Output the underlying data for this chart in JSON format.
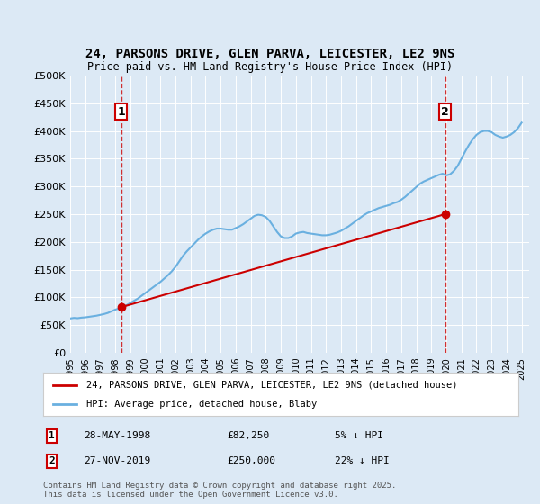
{
  "title": "24, PARSONS DRIVE, GLEN PARVA, LEICESTER, LE2 9NS",
  "subtitle": "Price paid vs. HM Land Registry's House Price Index (HPI)",
  "xlabel": "",
  "ylabel": "",
  "ylim": [
    0,
    500000
  ],
  "yticks": [
    0,
    50000,
    100000,
    150000,
    200000,
    250000,
    300000,
    350000,
    400000,
    450000,
    500000
  ],
  "ytick_labels": [
    "£0",
    "£50K",
    "£100K",
    "£150K",
    "£200K",
    "£250K",
    "£300K",
    "£350K",
    "£400K",
    "£450K",
    "£500K"
  ],
  "background_color": "#dce9f5",
  "plot_bg_color": "#dce9f5",
  "hpi_color": "#6ab0e0",
  "price_color": "#cc0000",
  "marker_color_1": "#cc0000",
  "marker_color_2": "#cc0000",
  "dashed_line_color": "#cc0000",
  "legend_label_price": "24, PARSONS DRIVE, GLEN PARVA, LEICESTER, LE2 9NS (detached house)",
  "legend_label_hpi": "HPI: Average price, detached house, Blaby",
  "transaction_1_date": "28-MAY-1998",
  "transaction_1_price": 82250,
  "transaction_1_pct": "5% ↓ HPI",
  "transaction_2_date": "27-NOV-2019",
  "transaction_2_price": 250000,
  "transaction_2_pct": "22% ↓ HPI",
  "footer": "Contains HM Land Registry data © Crown copyright and database right 2025.\nThis data is licensed under the Open Government Licence v3.0.",
  "xlim_start": 1995.0,
  "xlim_end": 2025.5,
  "xticks": [
    1995,
    1996,
    1997,
    1998,
    1999,
    2000,
    2001,
    2002,
    2003,
    2004,
    2005,
    2006,
    2007,
    2008,
    2009,
    2010,
    2011,
    2012,
    2013,
    2014,
    2015,
    2016,
    2017,
    2018,
    2019,
    2020,
    2021,
    2022,
    2023,
    2024,
    2025
  ],
  "hpi_years": [
    1995.0,
    1995.25,
    1995.5,
    1995.75,
    1996.0,
    1996.25,
    1996.5,
    1996.75,
    1997.0,
    1997.25,
    1997.5,
    1997.75,
    1998.0,
    1998.25,
    1998.5,
    1998.75,
    1999.0,
    1999.25,
    1999.5,
    1999.75,
    2000.0,
    2000.25,
    2000.5,
    2000.75,
    2001.0,
    2001.25,
    2001.5,
    2001.75,
    2002.0,
    2002.25,
    2002.5,
    2002.75,
    2003.0,
    2003.25,
    2003.5,
    2003.75,
    2004.0,
    2004.25,
    2004.5,
    2004.75,
    2005.0,
    2005.25,
    2005.5,
    2005.75,
    2006.0,
    2006.25,
    2006.5,
    2006.75,
    2007.0,
    2007.25,
    2007.5,
    2007.75,
    2008.0,
    2008.25,
    2008.5,
    2008.75,
    2009.0,
    2009.25,
    2009.5,
    2009.75,
    2010.0,
    2010.25,
    2010.5,
    2010.75,
    2011.0,
    2011.25,
    2011.5,
    2011.75,
    2012.0,
    2012.25,
    2012.5,
    2012.75,
    2013.0,
    2013.25,
    2013.5,
    2013.75,
    2014.0,
    2014.25,
    2014.5,
    2014.75,
    2015.0,
    2015.25,
    2015.5,
    2015.75,
    2016.0,
    2016.25,
    2016.5,
    2016.75,
    2017.0,
    2017.25,
    2017.5,
    2017.75,
    2018.0,
    2018.25,
    2018.5,
    2018.75,
    2019.0,
    2019.25,
    2019.5,
    2019.75,
    2020.0,
    2020.25,
    2020.5,
    2020.75,
    2021.0,
    2021.25,
    2021.5,
    2021.75,
    2022.0,
    2022.25,
    2022.5,
    2022.75,
    2023.0,
    2023.25,
    2023.5,
    2023.75,
    2024.0,
    2024.25,
    2024.5,
    2024.75,
    2025.0
  ],
  "hpi_values": [
    62000,
    63000,
    62500,
    63500,
    64000,
    65000,
    66000,
    67000,
    68500,
    70000,
    72000,
    75000,
    78000,
    80000,
    83000,
    86000,
    90000,
    94000,
    98000,
    103000,
    108000,
    113000,
    118000,
    123000,
    128000,
    134000,
    140000,
    147000,
    155000,
    165000,
    175000,
    183000,
    190000,
    197000,
    204000,
    210000,
    215000,
    219000,
    222000,
    224000,
    224000,
    223000,
    222000,
    222000,
    225000,
    228000,
    232000,
    237000,
    242000,
    247000,
    249000,
    248000,
    245000,
    238000,
    228000,
    218000,
    210000,
    207000,
    207000,
    210000,
    215000,
    217000,
    218000,
    216000,
    215000,
    214000,
    213000,
    212000,
    212000,
    213000,
    215000,
    217000,
    220000,
    224000,
    228000,
    233000,
    238000,
    243000,
    248000,
    252000,
    255000,
    258000,
    261000,
    263000,
    265000,
    267000,
    270000,
    272000,
    276000,
    281000,
    287000,
    293000,
    299000,
    305000,
    309000,
    312000,
    315000,
    318000,
    321000,
    323000,
    320000,
    322000,
    328000,
    337000,
    350000,
    363000,
    375000,
    385000,
    393000,
    398000,
    400000,
    400000,
    398000,
    393000,
    390000,
    388000,
    390000,
    393000,
    398000,
    405000,
    415000
  ],
  "price_years": [
    1998.38,
    2019.91
  ],
  "price_values": [
    82250,
    250000
  ],
  "marker1_x": 1998.38,
  "marker1_y": 82250,
  "marker2_x": 2019.91,
  "marker2_y": 250000,
  "vline1_x": 1998.38,
  "vline2_x": 2019.91
}
